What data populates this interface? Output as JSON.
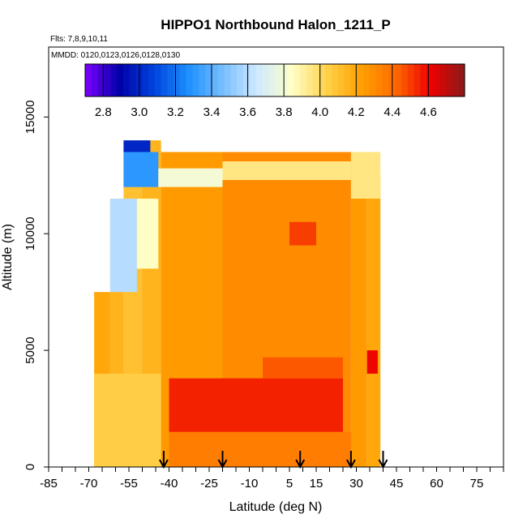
{
  "chart_data": {
    "type": "heatmap",
    "title": "HIPPO1 Northbound Halon_1211_P",
    "subtitle_flights": "Flts: 7,8,9,10,11",
    "subtitle_dates": "MMDD: 0120,0123,0126,0128,0130",
    "xlabel": "Latitude (deg N)",
    "ylabel": "Altitude (m)",
    "xlim": [
      -85,
      85
    ],
    "ylim": [
      0,
      18000
    ],
    "x_ticks": [
      "-85",
      "-70",
      "-55",
      "-40",
      "-25",
      "-10",
      "5",
      "15",
      "30",
      "45",
      "60",
      "75"
    ],
    "x_tick_values": [
      -85,
      -70,
      -55,
      -40,
      -25,
      -10,
      5,
      15,
      30,
      45,
      60,
      75
    ],
    "y_ticks": [
      "0",
      "5000",
      "10000",
      "15000"
    ],
    "y_tick_values": [
      0,
      5000,
      10000,
      15000
    ],
    "colorbar": {
      "min": 2.7,
      "max": 4.8,
      "ticks": [
        "2.8",
        "3.0",
        "3.2",
        "3.4",
        "3.6",
        "3.8",
        "4.0",
        "4.2",
        "4.4",
        "4.6"
      ],
      "tick_values": [
        2.8,
        3.0,
        3.2,
        3.4,
        3.6,
        3.8,
        4.0,
        4.2,
        4.4,
        4.6
      ],
      "colors": [
        "#7f00ff",
        "#0000a8",
        "#0044dd",
        "#1e90ff",
        "#78bfff",
        "#cfe9ff",
        "#ffffc8",
        "#ffd24a",
        "#ffa000",
        "#ff6a00",
        "#ee0000",
        "#8b1a1a"
      ]
    },
    "flight_arrows_lat": [
      -42,
      -20,
      9,
      28,
      40
    ],
    "data_extent": {
      "lat": [
        -68,
        39
      ],
      "alt": [
        0,
        14000
      ]
    },
    "columns": [
      {
        "lat": [
          -68,
          -62
        ],
        "alt_max": 7500,
        "value": 4.2
      },
      {
        "lat": [
          -62,
          -57
        ],
        "alt_max": 11500,
        "value": 4.15
      },
      {
        "lat": [
          -57,
          -50
        ],
        "alt_max": 14000,
        "value": 4.1
      },
      {
        "lat": [
          -50,
          -43
        ],
        "alt_max": 14000,
        "value": 4.15
      },
      {
        "lat": [
          -43,
          -20
        ],
        "alt_max": 13500,
        "value": 4.25
      },
      {
        "lat": [
          -20,
          5
        ],
        "alt_max": 13500,
        "value": 4.3
      },
      {
        "lat": [
          5,
          28
        ],
        "alt_max": 13500,
        "value": 4.3
      },
      {
        "lat": [
          28,
          34
        ],
        "alt_max": 13500,
        "value": 4.25
      },
      {
        "lat": [
          34,
          39
        ],
        "alt_max": 12500,
        "value": 4.2
      }
    ],
    "features": [
      {
        "lat": [
          -57,
          -44
        ],
        "alt": [
          12000,
          13500
        ],
        "value": 3.3
      },
      {
        "lat": [
          -57,
          -47
        ],
        "alt": [
          13500,
          14000
        ],
        "value": 3.0
      },
      {
        "lat": [
          -44,
          -20
        ],
        "alt": [
          12000,
          12800
        ],
        "value": 3.8
      },
      {
        "lat": [
          -20,
          28
        ],
        "alt": [
          12300,
          13100
        ],
        "value": 3.95
      },
      {
        "lat": [
          -62,
          -52
        ],
        "alt": [
          7500,
          11500
        ],
        "value": 3.6
      },
      {
        "lat": [
          -52,
          -44
        ],
        "alt": [
          8500,
          11500
        ],
        "value": 3.85
      },
      {
        "lat": [
          -40,
          25
        ],
        "alt": [
          1500,
          3800
        ],
        "value": 4.55
      },
      {
        "lat": [
          -5,
          25
        ],
        "alt": [
          3800,
          4700
        ],
        "value": 4.45
      },
      {
        "lat": [
          5,
          15
        ],
        "alt": [
          9500,
          10500
        ],
        "value": 4.5
      },
      {
        "lat": [
          34,
          38
        ],
        "alt": [
          4000,
          5000
        ],
        "value": 4.6
      },
      {
        "lat": [
          -68,
          -43
        ],
        "alt": [
          0,
          4000
        ],
        "value": 4.05
      },
      {
        "lat": [
          -40,
          28
        ],
        "alt": [
          0,
          1500
        ],
        "value": 4.35
      },
      {
        "lat": [
          28,
          39
        ],
        "alt": [
          11500,
          13500
        ],
        "value": 3.95
      }
    ]
  }
}
